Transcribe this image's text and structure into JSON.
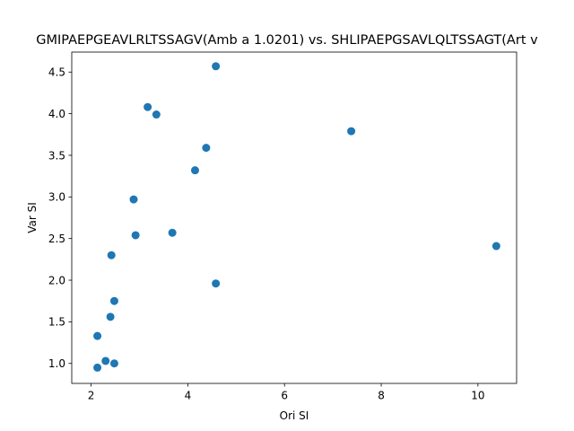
{
  "chart_data": {
    "type": "scatter",
    "title": "GMIPAEPGEAVLRLTSSAGV(Amb a 1.0201) vs. SHLIPAEPGSAVLQLTSSAGT(Art v",
    "xlabel": "Ori SI",
    "ylabel": "Var SI",
    "xlim": [
      1.6,
      10.8
    ],
    "ylim": [
      0.76,
      4.74
    ],
    "xticks": [
      2,
      4,
      6,
      8,
      10
    ],
    "yticks": [
      1.0,
      1.5,
      2.0,
      2.5,
      3.0,
      3.5,
      4.0,
      4.5
    ],
    "xtick_labels": [
      "2",
      "4",
      "6",
      "8",
      "10"
    ],
    "ytick_labels": [
      "1.0",
      "1.5",
      "2.0",
      "2.5",
      "3.0",
      "3.5",
      "4.0",
      "4.5"
    ],
    "grid": false,
    "marker_color": "#1f77b4",
    "points": [
      {
        "x": 4.58,
        "y": 4.57
      },
      {
        "x": 3.17,
        "y": 4.08
      },
      {
        "x": 3.35,
        "y": 3.99
      },
      {
        "x": 7.38,
        "y": 3.79
      },
      {
        "x": 4.38,
        "y": 3.59
      },
      {
        "x": 4.15,
        "y": 3.32
      },
      {
        "x": 2.88,
        "y": 2.97
      },
      {
        "x": 3.68,
        "y": 2.57
      },
      {
        "x": 2.92,
        "y": 2.54
      },
      {
        "x": 10.38,
        "y": 2.41
      },
      {
        "x": 2.42,
        "y": 2.3
      },
      {
        "x": 4.58,
        "y": 1.96
      },
      {
        "x": 2.48,
        "y": 1.75
      },
      {
        "x": 2.4,
        "y": 1.56
      },
      {
        "x": 2.13,
        "y": 1.33
      },
      {
        "x": 2.3,
        "y": 1.03
      },
      {
        "x": 2.48,
        "y": 1.0
      },
      {
        "x": 2.13,
        "y": 0.95
      }
    ]
  }
}
